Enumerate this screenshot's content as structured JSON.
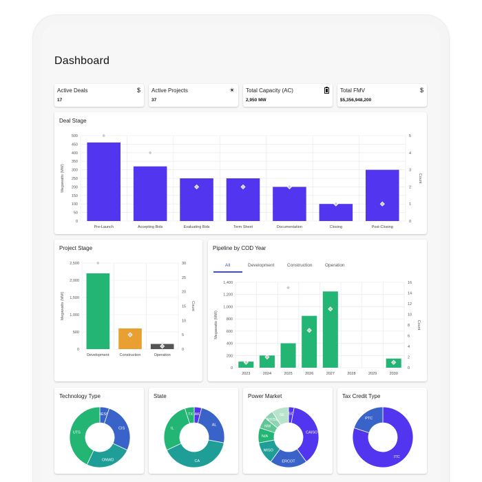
{
  "page": {
    "title": "Dashboard"
  },
  "kpis": [
    {
      "label": "Active Deals",
      "value": "17",
      "icon": "dollar-icon",
      "glyph": "$"
    },
    {
      "label": "Active Projects",
      "value": "37",
      "icon": "sun-icon",
      "glyph": "☀"
    },
    {
      "label": "Total Capacity (AC)",
      "value": "2,950 MW",
      "icon": "battery-icon",
      "glyph": "▮"
    },
    {
      "label": "Total FMV",
      "value": "$5,356,948,200",
      "icon": "dollar-sign-icon",
      "glyph": "$"
    }
  ],
  "deal_stage": {
    "title": "Deal Stage"
  },
  "project_stage": {
    "title": "Project Stage"
  },
  "pipeline": {
    "title": "Pipeline by COD Year",
    "tabs": [
      "All",
      "Development",
      "Construction",
      "Operation"
    ],
    "active_tab": "All"
  },
  "donuts": {
    "technology": {
      "title": "Technology Type"
    },
    "state": {
      "title": "State"
    },
    "power_market": {
      "title": "Power Market"
    },
    "tax_credit": {
      "title": "Tax Credit Type"
    }
  },
  "colors": {
    "bar": "#5235ee",
    "green": "#22b573",
    "orange": "#eaa030",
    "gray": "#555555",
    "teal": "#1f9e97",
    "blue": "#3a63c9",
    "marker": "#cccccc"
  },
  "chart_data": [
    {
      "type": "bar",
      "id": "deal_stage",
      "categories": [
        "Pre-Launch",
        "Accepting Bids",
        "Evaluating Bids",
        "Term Sheet",
        "Documentation",
        "Closing",
        "Post-Closing"
      ],
      "series": [
        {
          "values": [
            460,
            320,
            250,
            250,
            200,
            100,
            300
          ],
          "color": "#5235ee"
        },
        {
          "values": [
            5,
            4,
            2,
            2,
            2,
            1,
            1
          ],
          "type": "scatter",
          "axis": "right"
        }
      ],
      "ylabel": "Megawatts (MW)",
      "ylabel_right": "Count",
      "ylim": [
        0,
        500
      ],
      "ylim_right": [
        0,
        5
      ],
      "yticks": [
        0,
        50,
        100,
        150,
        200,
        250,
        300,
        350,
        400,
        450,
        500
      ],
      "yticks_right": [
        0,
        1,
        2,
        3,
        4,
        5
      ]
    },
    {
      "type": "bar",
      "id": "project_stage",
      "categories": [
        "Development",
        "Construction",
        "Operation"
      ],
      "series": [
        {
          "values": [
            2200,
            600,
            150
          ],
          "colors": [
            "#22b573",
            "#eaa030",
            "#555555"
          ]
        },
        {
          "values": [
            30,
            5,
            1
          ],
          "type": "scatter",
          "axis": "right"
        }
      ],
      "ylabel": "Megawatts (MW)",
      "ylabel_right": "Count",
      "ylim": [
        0,
        2500
      ],
      "ylim_right": [
        0,
        30
      ],
      "yticks": [
        0,
        500,
        1000,
        1500,
        2000,
        2500
      ],
      "yticks_labels": [
        "0",
        "500",
        "1,000",
        "1,500",
        "2,000",
        "2,500"
      ],
      "yticks_right": [
        0,
        5,
        10,
        15,
        20,
        25,
        30
      ]
    },
    {
      "type": "bar",
      "id": "pipeline",
      "categories": [
        "2023",
        "2024",
        "2025",
        "2026",
        "2027",
        "2028",
        "2029",
        "2030"
      ],
      "series": [
        {
          "values": [
            100,
            200,
            400,
            850,
            1250,
            0,
            0,
            150
          ],
          "color": "#22b573"
        },
        {
          "values": [
            1,
            2,
            15,
            7,
            11,
            null,
            null,
            1
          ],
          "type": "scatter",
          "axis": "right"
        }
      ],
      "ylabel": "Megawatts (MW)",
      "ylabel_right": "Count",
      "ylim": [
        0,
        1400
      ],
      "ylim_right": [
        0,
        16
      ],
      "yticks": [
        0,
        200,
        400,
        600,
        800,
        1000,
        1200,
        1400
      ],
      "yticks_labels": [
        "0",
        "200",
        "400",
        "600",
        "800",
        "1,000",
        "1,200",
        "1,400"
      ],
      "yticks_right": [
        0,
        2,
        4,
        6,
        8,
        10,
        12,
        14,
        16
      ]
    },
    {
      "type": "pie",
      "id": "technology",
      "labels": [
        "BESS",
        "CIS",
        "ONWD",
        "UTS"
      ],
      "values": [
        5,
        27,
        25,
        43
      ],
      "colors": [
        "#3a63c9",
        "#3a63c9",
        "#1f9e97",
        "#22b573"
      ]
    },
    {
      "type": "pie",
      "id": "state",
      "labels": [
        "AK",
        "AL",
        "CA",
        "IL",
        "TX"
      ],
      "values": [
        4,
        24,
        40,
        27,
        5
      ],
      "colors": [
        "#5235ee",
        "#3a63c9",
        "#1f9e97",
        "#22b573",
        "#22b573"
      ]
    },
    {
      "type": "pie",
      "id": "power_market",
      "labels": [
        "ISO",
        "CAISO",
        "ERCOT",
        "MISO",
        "N/A",
        "NW",
        "NY/SQ",
        "SE"
      ],
      "values": [
        3,
        37,
        20,
        12,
        8,
        6,
        5,
        9
      ],
      "colors": [
        "#5235ee",
        "#5235ee",
        "#3a63c9",
        "#1f9e97",
        "#22b573",
        "#5fc594",
        "#8fd4b2",
        "#b8e4cc"
      ]
    },
    {
      "type": "pie",
      "id": "tax_credit",
      "labels": [
        "ITC",
        "PTC"
      ],
      "values": [
        80,
        20
      ],
      "colors": [
        "#5235ee",
        "#3a63c9"
      ]
    }
  ]
}
